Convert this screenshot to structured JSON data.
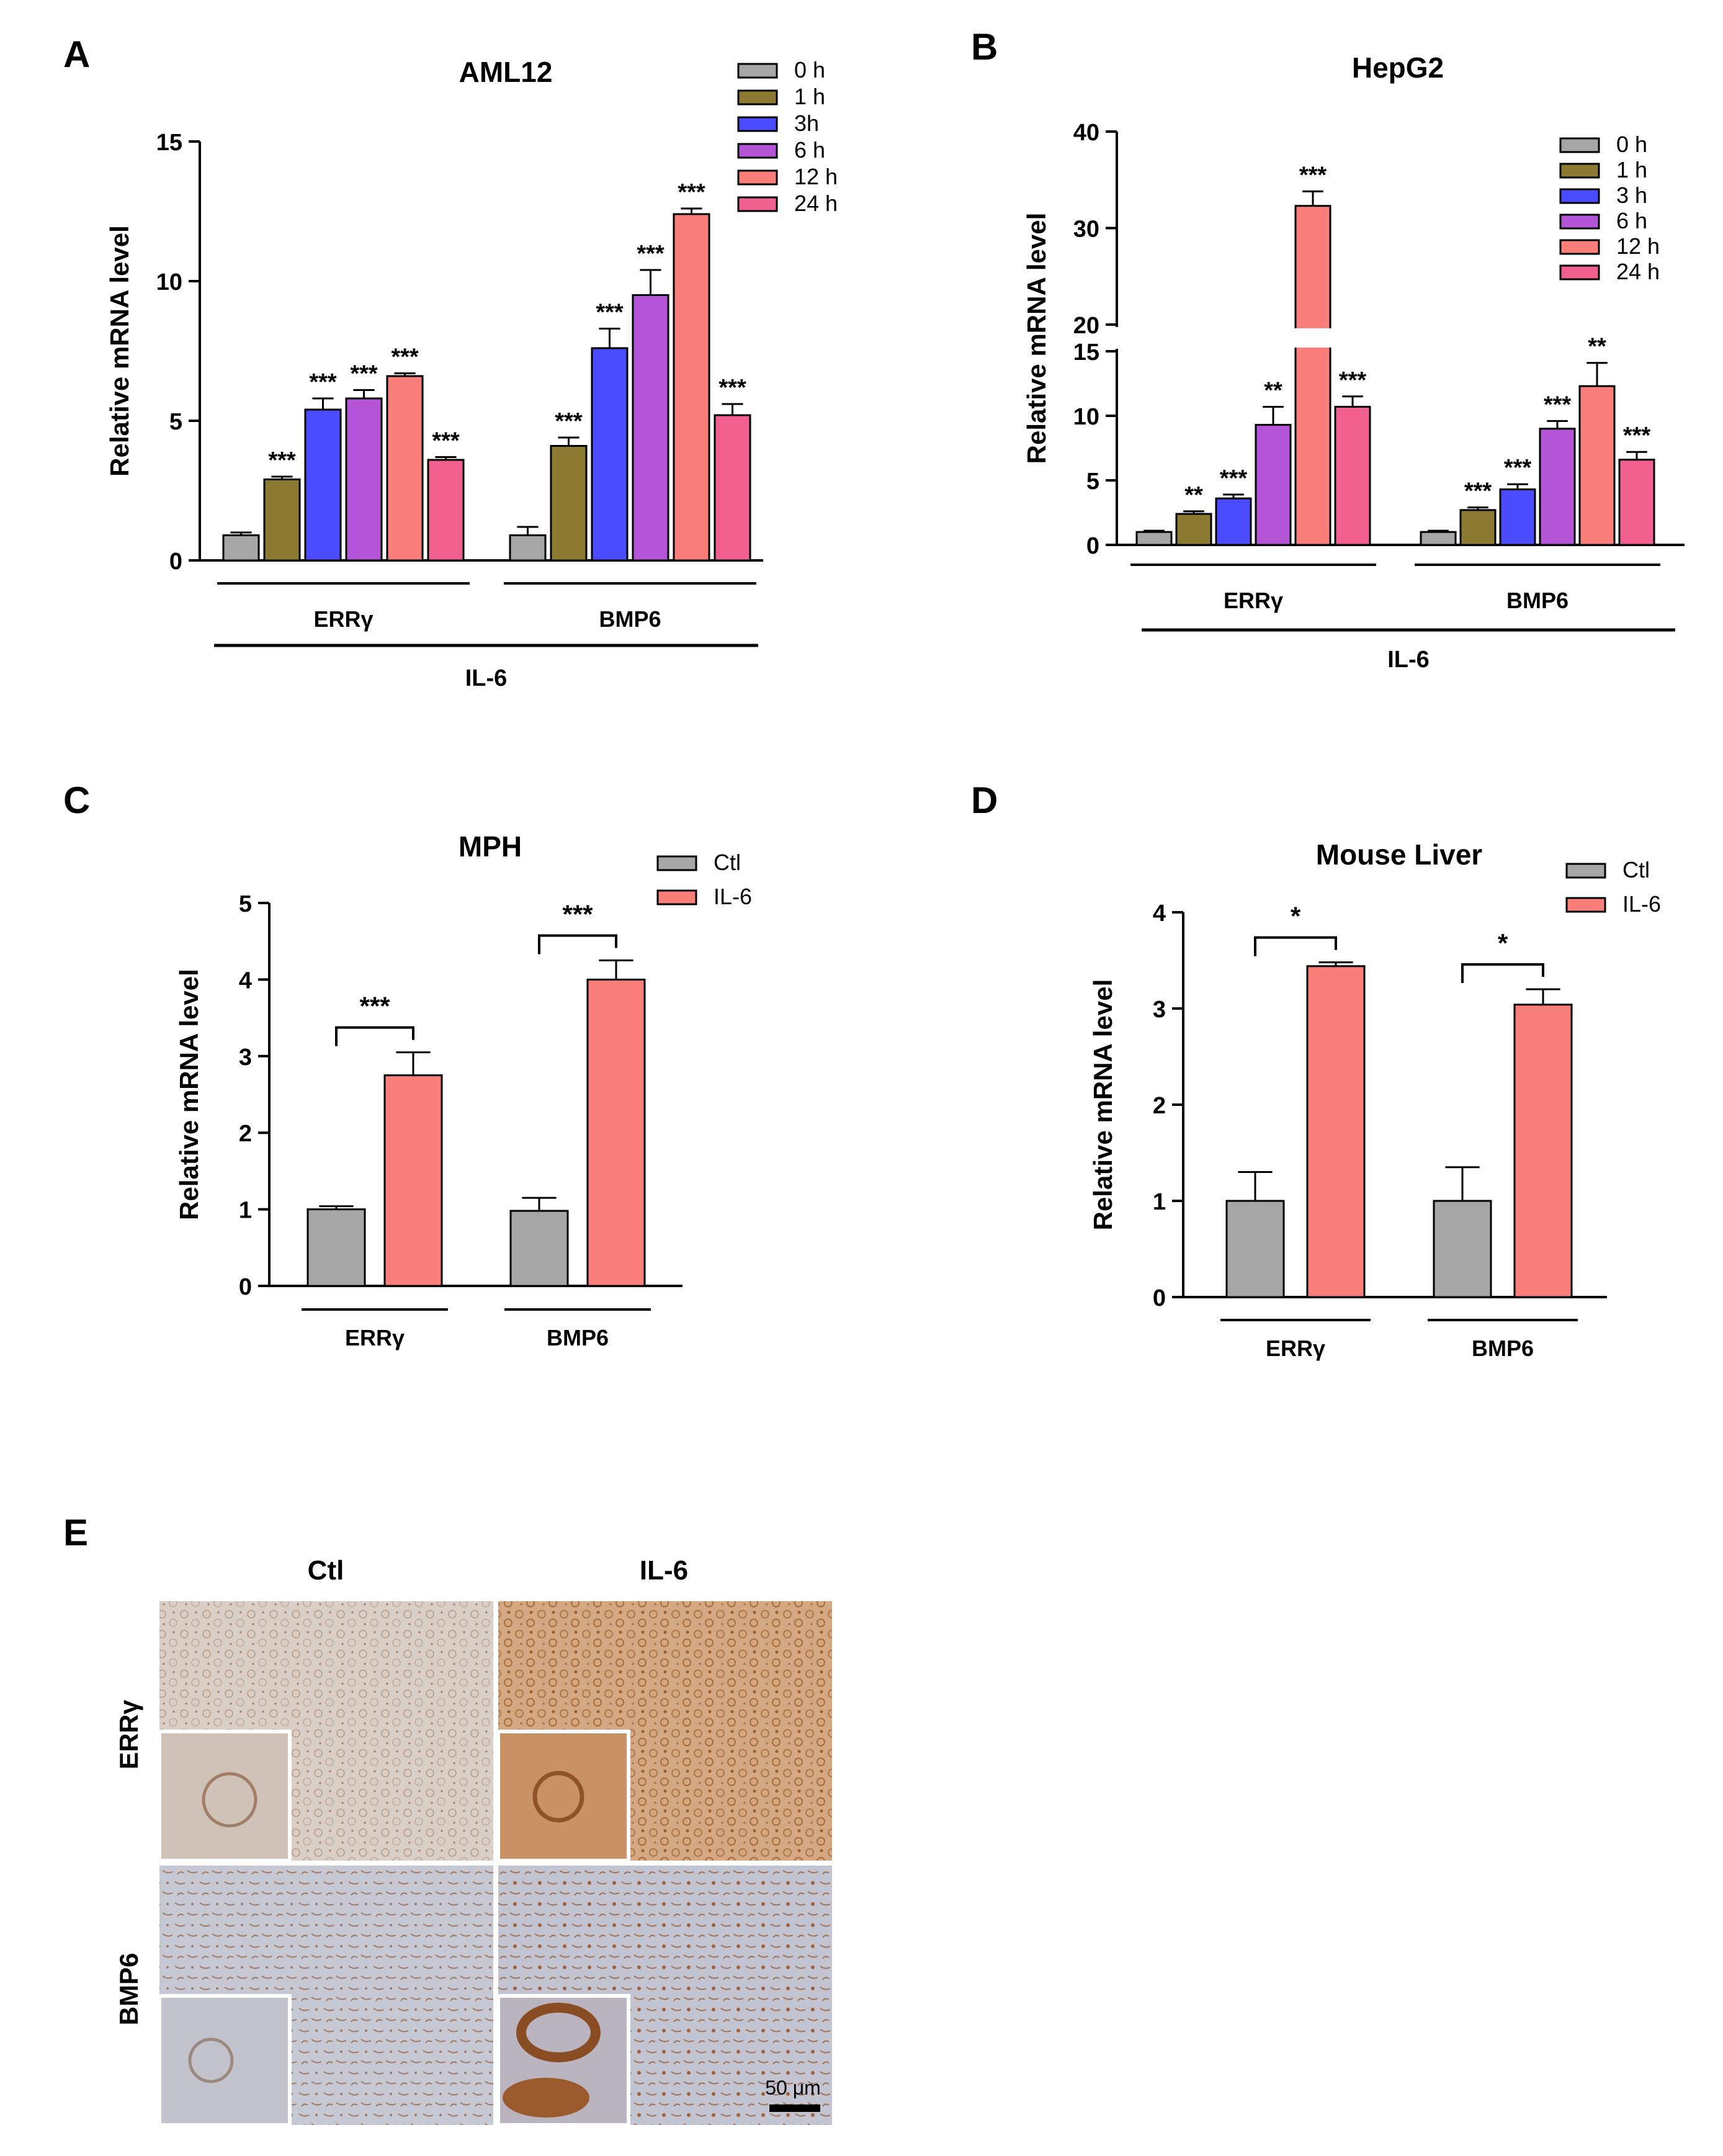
{
  "panel_letters": [
    "A",
    "B",
    "C",
    "D",
    "E"
  ],
  "chart_data": [
    {
      "panel": "A",
      "type": "bar",
      "title": "AML12",
      "ylabel": "Relative mRNA level",
      "xlabel": "",
      "ylim": [
        0,
        15
      ],
      "yticks": [
        0,
        5,
        10,
        15
      ],
      "groups": [
        "ERRγ",
        "BMP6"
      ],
      "outer_group": "IL-6",
      "series": [
        {
          "name": "0 h",
          "color": "#A6A6A6",
          "values": [
            0.9,
            0.9
          ],
          "errors": [
            0.1,
            0.3
          ],
          "sig": [
            "",
            ""
          ]
        },
        {
          "name": "1 h",
          "color": "#8C7A32",
          "values": [
            2.9,
            4.1
          ],
          "errors": [
            0.1,
            0.3
          ],
          "sig": [
            "***",
            "***"
          ]
        },
        {
          "name": "3h",
          "color": "#4B4BFF",
          "values": [
            5.4,
            7.6
          ],
          "errors": [
            0.4,
            0.7
          ],
          "sig": [
            "***",
            "***"
          ]
        },
        {
          "name": "6 h",
          "color": "#B455D8",
          "values": [
            5.8,
            9.5
          ],
          "errors": [
            0.3,
            0.9
          ],
          "sig": [
            "***",
            "***"
          ]
        },
        {
          "name": "12 h",
          "color": "#FA7F7A",
          "values": [
            6.6,
            12.4
          ],
          "errors": [
            0.1,
            0.2
          ],
          "sig": [
            "***",
            "***"
          ]
        },
        {
          "name": "24 h",
          "color": "#F2608F",
          "values": [
            3.6,
            5.2
          ],
          "errors": [
            0.1,
            0.4
          ],
          "sig": [
            "***",
            "***"
          ]
        }
      ]
    },
    {
      "panel": "B",
      "type": "bar",
      "title": "HepG2",
      "ylabel": "Relative mRNA level",
      "xlabel": "",
      "ylim": [
        0,
        40
      ],
      "axis_break": [
        15,
        20
      ],
      "yticks": [
        0,
        5,
        10,
        15,
        20,
        30,
        40
      ],
      "groups": [
        "ERRγ",
        "BMP6"
      ],
      "outer_group": "IL-6",
      "series": [
        {
          "name": "0 h",
          "color": "#A6A6A6",
          "values": [
            1.0,
            1.0
          ],
          "errors": [
            0.1,
            0.1
          ],
          "sig": [
            "",
            ""
          ]
        },
        {
          "name": "1 h",
          "color": "#8C7A32",
          "values": [
            2.4,
            2.7
          ],
          "errors": [
            0.2,
            0.2
          ],
          "sig": [
            "**",
            "***"
          ]
        },
        {
          "name": "3 h",
          "color": "#4B4BFF",
          "values": [
            3.6,
            4.3
          ],
          "errors": [
            0.3,
            0.4
          ],
          "sig": [
            "***",
            "***"
          ]
        },
        {
          "name": "6 h",
          "color": "#B455D8",
          "values": [
            9.3,
            9.0
          ],
          "errors": [
            1.4,
            0.6
          ],
          "sig": [
            "**",
            "***"
          ]
        },
        {
          "name": "12 h",
          "color": "#FA7F7A",
          "values": [
            32.3,
            12.3
          ],
          "errors": [
            1.5,
            1.8
          ],
          "sig": [
            "***",
            "**"
          ]
        },
        {
          "name": "24 h",
          "color": "#F2608F",
          "values": [
            10.7,
            6.6
          ],
          "errors": [
            0.8,
            0.6
          ],
          "sig": [
            "***",
            "***"
          ]
        }
      ]
    },
    {
      "panel": "C",
      "type": "bar",
      "title": "MPH",
      "ylabel": "Relative mRNA level",
      "xlabel": "",
      "ylim": [
        0,
        5
      ],
      "yticks": [
        0,
        1,
        2,
        3,
        4,
        5
      ],
      "groups": [
        "ERRγ",
        "BMP6"
      ],
      "series": [
        {
          "name": "Ctl",
          "color": "#A6A6A6",
          "values": [
            1.0,
            0.98
          ],
          "errors": [
            0.04,
            0.17
          ]
        },
        {
          "name": "IL-6",
          "color": "#FA7F7A",
          "values": [
            2.75,
            4.0
          ],
          "errors": [
            0.3,
            0.25
          ]
        }
      ],
      "sig_brackets": [
        "***",
        "***"
      ]
    },
    {
      "panel": "D",
      "type": "bar",
      "title": "Mouse Liver",
      "ylabel": "Relative mRNA level",
      "xlabel": "",
      "ylim": [
        0,
        4
      ],
      "yticks": [
        0,
        1,
        2,
        3,
        4
      ],
      "groups": [
        "ERRγ",
        "BMP6"
      ],
      "series": [
        {
          "name": "Ctl",
          "color": "#A6A6A6",
          "values": [
            1.0,
            1.0
          ],
          "errors": [
            0.3,
            0.35
          ]
        },
        {
          "name": "IL-6",
          "color": "#FA7F7A",
          "values": [
            3.44,
            3.04
          ],
          "errors": [
            0.04,
            0.16
          ]
        }
      ],
      "sig_brackets": [
        "*",
        "*"
      ]
    }
  ],
  "panel_e": {
    "columns": [
      "Ctl",
      "IL-6"
    ],
    "rows": [
      "ERRγ",
      "BMP6"
    ],
    "scale_bar": "50 μm"
  }
}
